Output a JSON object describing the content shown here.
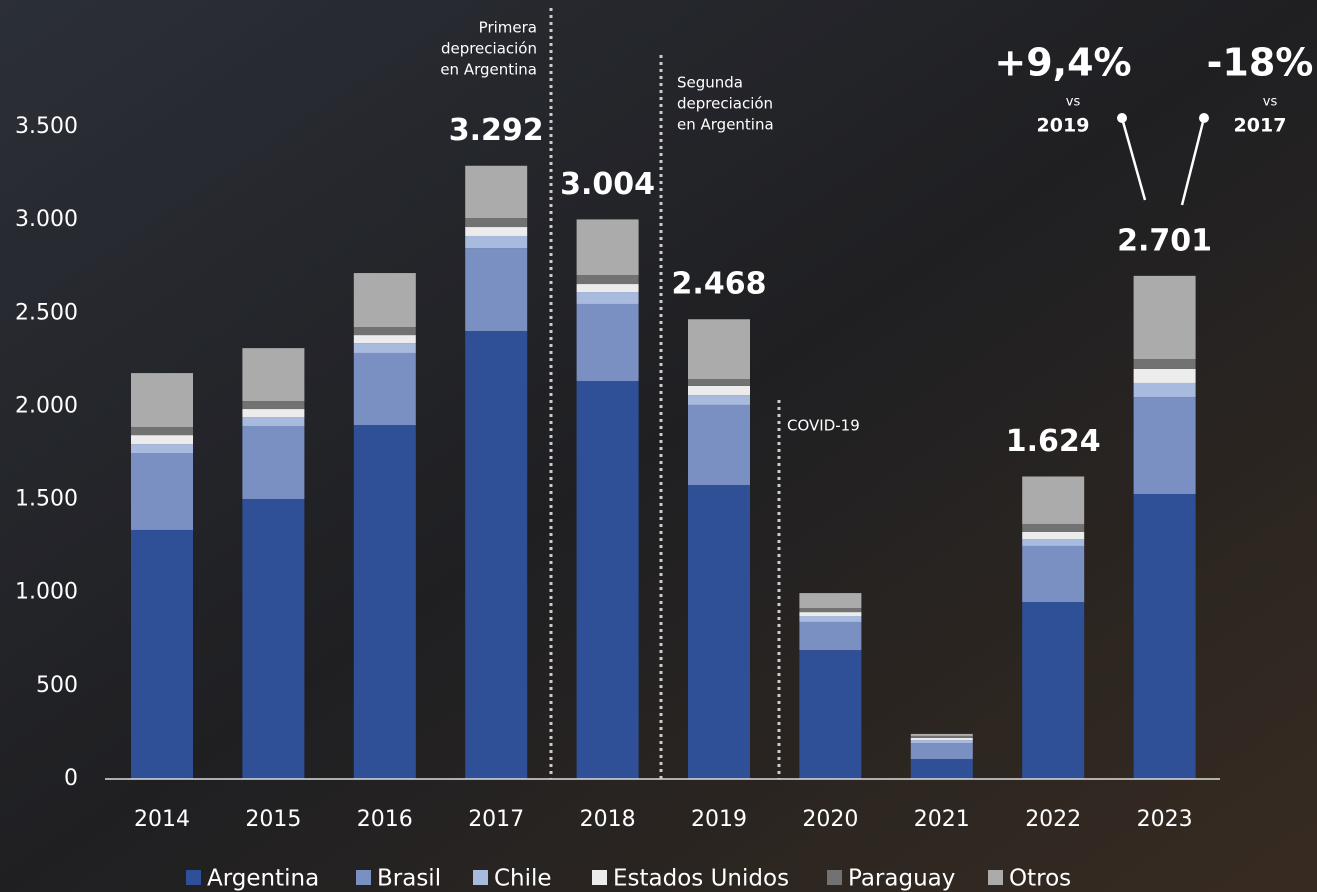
{
  "chart_data": {
    "type": "stacked_bar",
    "categories": [
      "2014",
      "2015",
      "2016",
      "2017",
      "2018",
      "2019",
      "2020",
      "2021",
      "2022",
      "2023"
    ],
    "series": [
      {
        "name": "Argentina",
        "color": "#2f5096",
        "values": [
          1337,
          1503,
          1900,
          2405,
          2136,
          1578,
          692,
          107,
          950,
          1530
        ]
      },
      {
        "name": "Brasil",
        "color": "#7b90c2",
        "values": [
          413,
          392,
          387,
          445,
          414,
          430,
          151,
          86,
          301,
          520
        ]
      },
      {
        "name": "Chile",
        "color": "#a9badf",
        "values": [
          48,
          48,
          53,
          65,
          64,
          53,
          32,
          16,
          37,
          76
        ]
      },
      {
        "name": "Estados Unidos",
        "color": "#ececec",
        "values": [
          48,
          43,
          43,
          48,
          43,
          49,
          21,
          11,
          38,
          75
        ]
      },
      {
        "name": "Paraguay",
        "color": "#727272",
        "values": [
          43,
          43,
          43,
          48,
          48,
          37,
          22,
          11,
          43,
          53
        ]
      },
      {
        "name": "Otros",
        "color": "#ababab",
        "values": [
          290,
          284,
          290,
          281,
          299,
          321,
          80,
          11,
          255,
          447
        ]
      }
    ],
    "ylim": [
      0,
      3500
    ],
    "yticks": [
      0,
      500,
      {
        "value": 1000,
        "label": "1.000"
      },
      {
        "value": 1500,
        "label": "1.500"
      },
      {
        "value": 2000,
        "label": "2.000"
      },
      {
        "value": 2500,
        "label": "2.500"
      },
      {
        "value": 3000,
        "label": "3.000"
      },
      {
        "value": 3500,
        "label": "3.500"
      }
    ],
    "total_labels": [
      {
        "category": "2017",
        "value": 3292,
        "label": "3.292"
      },
      {
        "category": "2018",
        "value": 3004,
        "label": "3.004"
      },
      {
        "category": "2019",
        "value": 2468,
        "label": "2.468"
      },
      {
        "category": "2022",
        "value": 1624,
        "label": "1.624"
      },
      {
        "category": "2023",
        "value": 2701,
        "label": "2.701"
      }
    ],
    "events": [
      {
        "lines": [
          "Primera",
          "depreciación",
          "en Argentina"
        ]
      },
      {
        "lines": [
          "Segunda",
          "depreciación",
          "en Argentina"
        ]
      },
      {
        "lines": [
          "COVID-19"
        ]
      }
    ],
    "comparisons": [
      {
        "value": 9.4,
        "label": "+9,4%",
        "vs": "vs",
        "year": "2019"
      },
      {
        "value": -18,
        "label": "-18%",
        "vs": "vs",
        "year": "2017"
      }
    ],
    "legend": "bottom",
    "grid": false
  }
}
